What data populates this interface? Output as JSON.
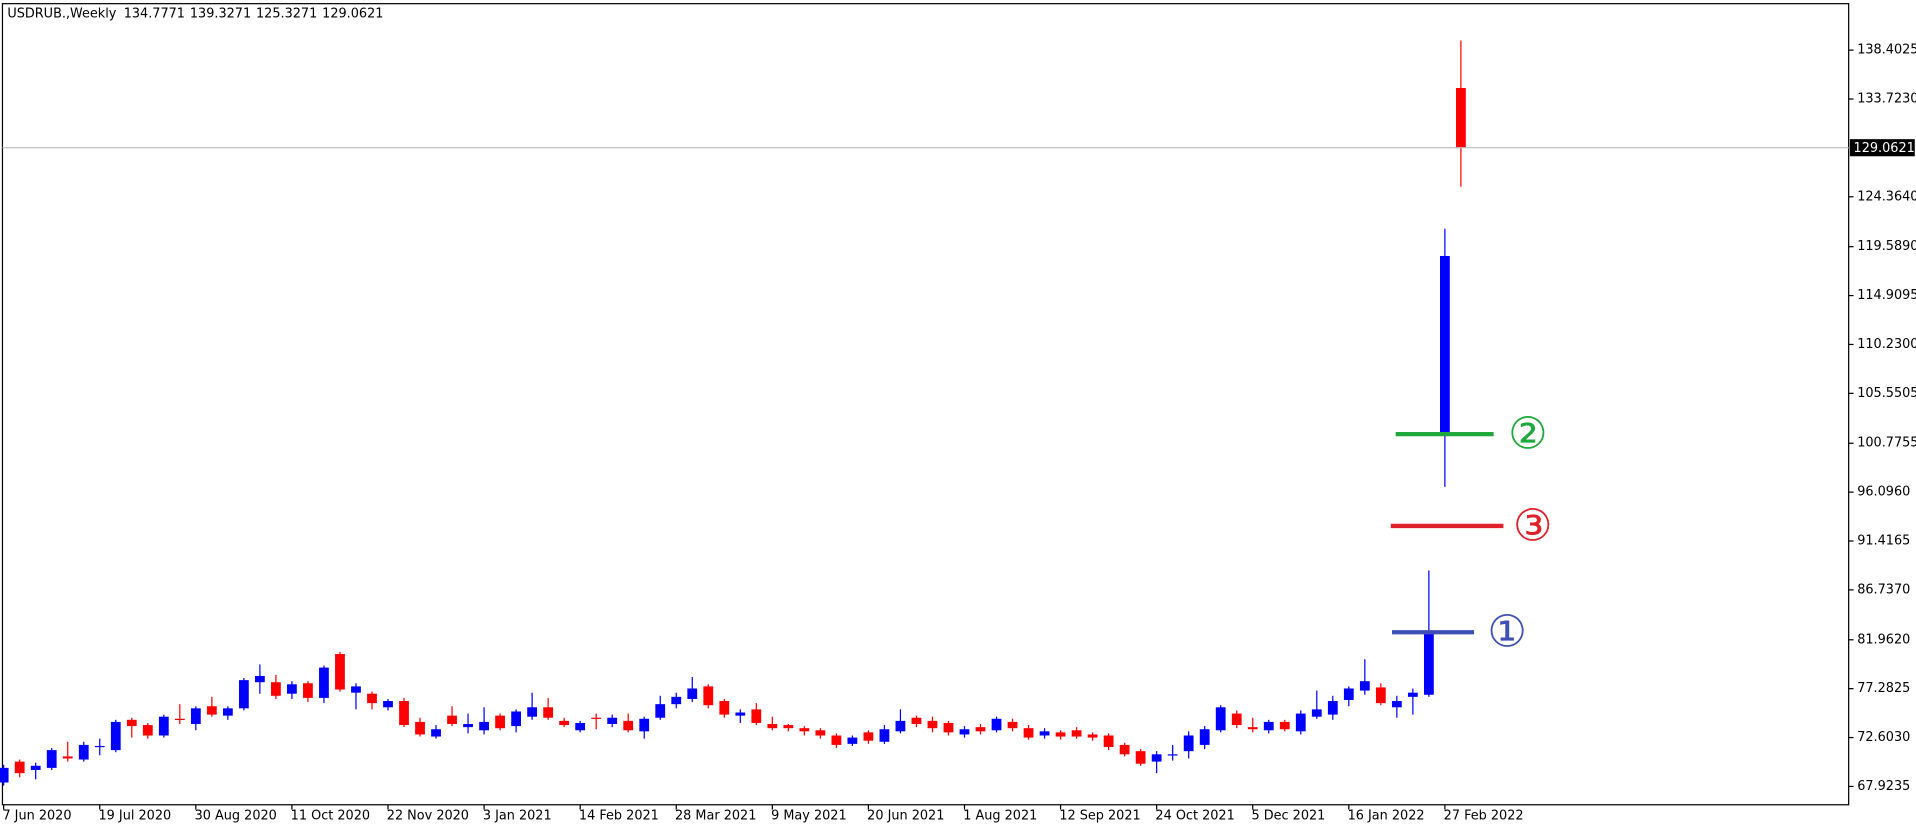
{
  "chart_data": {
    "type": "candlestick",
    "symbol": "USDRUB.,Weekly",
    "categories": [
      "7 Jun 2020",
      null,
      null,
      null,
      null,
      null,
      "19 Jul 2020",
      null,
      null,
      null,
      null,
      null,
      "30 Aug 2020",
      null,
      null,
      null,
      null,
      null,
      "11 Oct 2020",
      null,
      null,
      null,
      null,
      null,
      "22 Nov 2020",
      null,
      null,
      null,
      null,
      null,
      "3 Jan 2021",
      null,
      null,
      null,
      null,
      null,
      "14 Feb 2021",
      null,
      null,
      null,
      null,
      null,
      "28 Mar 2021",
      null,
      null,
      null,
      null,
      null,
      "9 May 2021",
      null,
      null,
      null,
      null,
      null,
      "20 Jun 2021",
      null,
      null,
      null,
      null,
      null,
      "1 Aug 2021",
      null,
      null,
      null,
      null,
      null,
      "12 Sep 2021",
      null,
      null,
      null,
      null,
      null,
      "24 Oct 2021",
      null,
      null,
      null,
      null,
      null,
      "5 Dec 2021",
      null,
      null,
      null,
      null,
      null,
      "16 Jan 2022",
      null,
      null,
      null,
      null,
      null,
      "27 Feb 2022",
      null
    ],
    "open": [
      68.3,
      70.3,
      69.5,
      69.7,
      70.8,
      70.5,
      71.7,
      71.4,
      74.3,
      73.8,
      72.8,
      74.4,
      73.9,
      75.6,
      74.7,
      75.4,
      77.9,
      77.9,
      76.8,
      77.8,
      76.4,
      80.6,
      76.9,
      76.8,
      75.5,
      76.1,
      74.1,
      72.7,
      74.7,
      73.6,
      73.3,
      74.7,
      73.7,
      74.6,
      75.5,
      74.2,
      73.3,
      74.5,
      73.9,
      74.2,
      73.2,
      74.5,
      75.8,
      76.3,
      77.5,
      76.1,
      74.7,
      75.3,
      73.9,
      73.8,
      73.5,
      73.3,
      72.8,
      72.0,
      73.1,
      72.2,
      73.2,
      74.5,
      74.2,
      74.0,
      72.9,
      73.6,
      73.3,
      74.1,
      73.5,
      72.8,
      73.1,
      73.3,
      72.9,
      72.8,
      71.9,
      71.3,
      70.3,
      70.9,
      71.3,
      71.9,
      73.3,
      74.9,
      73.6,
      73.3,
      74.1,
      73.2,
      74.6,
      74.8,
      76.2,
      77.1,
      77.4,
      75.5,
      76.5,
      76.7,
      101.6,
      134.7771
    ],
    "high": [
      70.0,
      70.5,
      70.2,
      71.6,
      72.2,
      72.2,
      72.5,
      74.3,
      74.5,
      74.0,
      74.8,
      75.8,
      75.6,
      76.5,
      75.6,
      78.3,
      79.6,
      78.6,
      78.0,
      78.0,
      79.5,
      80.8,
      77.8,
      77.0,
      76.3,
      76.4,
      74.5,
      73.8,
      75.6,
      74.9,
      75.5,
      74.9,
      75.3,
      76.9,
      76.4,
      74.5,
      74.2,
      74.9,
      74.8,
      74.9,
      74.6,
      76.6,
      76.9,
      78.4,
      77.7,
      76.3,
      75.3,
      75.9,
      74.6,
      73.9,
      73.7,
      73.5,
      73.0,
      72.8,
      73.3,
      73.8,
      75.3,
      74.7,
      74.6,
      74.2,
      73.7,
      73.9,
      74.6,
      74.4,
      73.8,
      73.5,
      73.3,
      73.6,
      73.1,
      73.0,
      72.1,
      71.5,
      71.3,
      71.9,
      73.2,
      73.7,
      75.7,
      75.2,
      74.5,
      74.3,
      74.3,
      75.2,
      77.1,
      76.6,
      77.5,
      80.1,
      77.8,
      76.6,
      77.3,
      88.6,
      121.3,
      139.3271
    ],
    "low": [
      68.0,
      68.8,
      68.6,
      69.5,
      70.3,
      70.3,
      70.9,
      71.2,
      72.6,
      72.5,
      72.6,
      73.9,
      73.3,
      74.6,
      74.3,
      75.2,
      76.8,
      76.3,
      76.3,
      76.0,
      75.9,
      77.0,
      75.3,
      75.3,
      75.2,
      73.6,
      72.7,
      72.5,
      73.7,
      73.0,
      72.9,
      73.3,
      73.1,
      74.3,
      74.3,
      73.6,
      73.1,
      73.4,
      73.6,
      73.1,
      72.5,
      74.3,
      75.4,
      76.0,
      75.4,
      74.5,
      74.0,
      73.8,
      73.3,
      73.2,
      72.8,
      72.5,
      71.6,
      71.8,
      72.0,
      72.0,
      73.0,
      73.6,
      73.1,
      72.8,
      72.6,
      72.9,
      73.1,
      73.2,
      72.4,
      72.5,
      72.4,
      72.5,
      72.3,
      71.4,
      70.8,
      69.9,
      69.2,
      70.4,
      70.6,
      71.5,
      73.1,
      73.5,
      73.1,
      73.0,
      73.2,
      72.9,
      74.4,
      74.3,
      75.6,
      76.7,
      75.7,
      74.5,
      74.8,
      76.5,
      96.6,
      125.3271
    ],
    "close": [
      69.7,
      69.2,
      69.9,
      71.4,
      70.6,
      71.9,
      71.8,
      74.1,
      73.7,
      72.8,
      74.6,
      74.3,
      75.4,
      74.8,
      75.4,
      78.1,
      78.5,
      76.6,
      77.7,
      76.4,
      79.3,
      77.2,
      77.5,
      75.9,
      76.1,
      73.8,
      72.9,
      73.4,
      73.9,
      73.9,
      74.1,
      73.5,
      75.1,
      75.5,
      74.5,
      73.8,
      74.0,
      74.4,
      74.5,
      73.3,
      74.4,
      75.8,
      76.5,
      77.3,
      75.7,
      74.8,
      75.0,
      74.0,
      73.5,
      73.5,
      73.2,
      72.8,
      71.9,
      72.6,
      72.3,
      73.4,
      74.2,
      73.9,
      73.5,
      73.1,
      73.4,
      73.2,
      74.4,
      73.5,
      72.6,
      73.2,
      72.7,
      72.7,
      72.6,
      71.7,
      71.0,
      70.1,
      71.0,
      71.0,
      72.8,
      73.4,
      75.5,
      73.8,
      73.4,
      74.1,
      73.4,
      74.9,
      75.3,
      76.1,
      77.3,
      78.0,
      75.9,
      76.1,
      76.9,
      82.6,
      118.7,
      129.0621
    ],
    "up_color": "#0000ff",
    "down_color": "#ff0000",
    "ylim": [
      66.17,
      142.85
    ],
    "yticks": [
      138.4025,
      {
        "value": 133.723,
        "label": "133.7230"
      },
      {
        "value": 124.364,
        "label": "124.3640"
      },
      {
        "value": 119.589,
        "label": "119.5890"
      },
      114.9095,
      {
        "value": 110.23,
        "label": "110.2300"
      },
      105.5505,
      100.7755,
      {
        "value": 96.096,
        "label": "96.0960"
      },
      91.4165,
      {
        "value": 86.737,
        "label": "86.7370"
      },
      {
        "value": 81.962,
        "label": "81.9620"
      },
      77.2825,
      {
        "value": 72.603,
        "label": "72.6030"
      },
      67.9235
    ],
    "annotations": [
      {
        "label": "①",
        "value": 82.68,
        "color": "#3f4fb5"
      },
      {
        "label": "②",
        "value": 101.65,
        "color": "#1fa83c"
      },
      {
        "label": "③",
        "value": 92.86,
        "color": "#e0202a"
      }
    ]
  }
}
